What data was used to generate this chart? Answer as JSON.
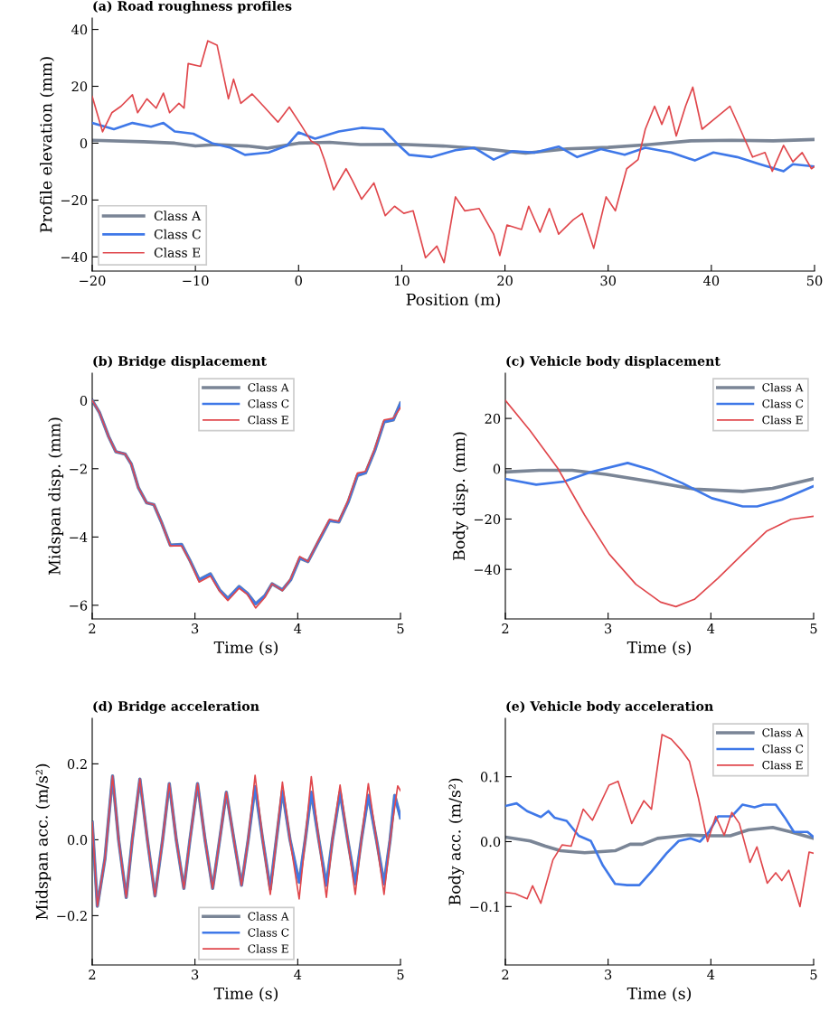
{
  "chart_data": [
    {
      "type": "line",
      "title": "(a) Road roughness profiles",
      "xlabel": "Position (m)",
      "ylabel": "Profile elevation (mm)",
      "xlim": [
        -20,
        50
      ],
      "ylim": [
        -45,
        44
      ],
      "xticks": [
        {
          "value": -20,
          "label": "−20"
        },
        {
          "value": -10,
          "label": "−10"
        },
        0,
        10,
        20,
        30,
        40,
        50
      ],
      "yticks": [
        {
          "value": -40,
          "label": "−40"
        },
        {
          "value": -20,
          "label": "−20"
        },
        0,
        20,
        40
      ],
      "legend": "bottom left",
      "series": [
        {
          "name": "Class A",
          "color": "#7a8596",
          "x": [
            -20,
            -15,
            -12,
            -10,
            -8,
            -5,
            -3,
            0,
            3,
            6,
            10,
            14,
            18,
            22,
            26,
            30,
            34,
            38,
            42,
            46,
            50
          ],
          "values": [
            1,
            0.5,
            0,
            -1,
            -0.5,
            -1,
            -1.8,
            0,
            0.3,
            -0.5,
            -0.4,
            -1,
            -2,
            -3.5,
            -2,
            -1.5,
            -0.5,
            0.8,
            1,
            0.8,
            1.3
          ]
        },
        {
          "name": "Class C",
          "color": "#3f78e8",
          "x": [
            -20,
            -17.9,
            -16.1,
            -14.3,
            -13.1,
            -12,
            -10.2,
            -8.4,
            -6.6,
            -5.2,
            -2.9,
            -1.1,
            0,
            1.6,
            3.9,
            6.1,
            8.2,
            9.5,
            10.7,
            12.9,
            15.2,
            17,
            18.9,
            20.7,
            22.9,
            25.2,
            27,
            29.3,
            31.6,
            33.6,
            36.1,
            38.4,
            40.2,
            42.5,
            44.7,
            47,
            47.9,
            50
          ],
          "values": [
            7.1,
            4.9,
            7.1,
            5.8,
            7.1,
            4.1,
            3.3,
            0,
            -1.6,
            -4.1,
            -3.3,
            -0.8,
            3.8,
            1.6,
            4.1,
            5.4,
            4.9,
            0,
            -4.1,
            -4.9,
            -2.5,
            -1.6,
            -5.8,
            -2.8,
            -3.3,
            -1.2,
            -4.9,
            -2.1,
            -4.1,
            -1.6,
            -3.3,
            -6.1,
            -3.3,
            -4.9,
            -7.4,
            -9.9,
            -7.4,
            -8.2
          ]
        },
        {
          "name": "Class E",
          "color": "#e0474c",
          "x": [
            -20,
            -19,
            -18.1,
            -17.2,
            -16.1,
            -15.6,
            -14.7,
            -13.8,
            -13.1,
            -12.5,
            -11.6,
            -11.1,
            -10.7,
            -9.5,
            -8.8,
            -7.9,
            -6.8,
            -6.3,
            -5.6,
            -4.5,
            -3.4,
            -2,
            -0.9,
            0.2,
            1.2,
            2,
            2.5,
            3.4,
            4.6,
            5.2,
            6.1,
            7.3,
            8.4,
            9.3,
            10.2,
            11.1,
            12.3,
            13.4,
            14.1,
            15.2,
            16.1,
            17.5,
            18.9,
            19.5,
            20.2,
            21.6,
            22.3,
            23.4,
            24.3,
            25.2,
            26.6,
            27.5,
            28.6,
            29.8,
            30.7,
            31.8,
            32.9,
            33.6,
            34.5,
            35.2,
            35.9,
            36.6,
            37.5,
            38.2,
            39.1,
            40.2,
            41.8,
            42.9,
            44,
            45.2,
            45.9,
            47,
            47.9,
            48.8,
            49.7,
            50
          ],
          "values": [
            16.4,
            4,
            10.7,
            13,
            17,
            10.7,
            15.6,
            12.3,
            17.6,
            10.7,
            14,
            12.3,
            28,
            27,
            36,
            34.5,
            15.6,
            22.5,
            14,
            17.3,
            13,
            7.4,
            12.7,
            6.6,
            0.8,
            -0.8,
            -5.8,
            -16.4,
            -9,
            -13,
            -19.7,
            -14,
            -25.5,
            -22.2,
            -24.7,
            -23.8,
            -40.3,
            -36.2,
            -42,
            -18.9,
            -23.8,
            -23,
            -32,
            -39.5,
            -28.8,
            -30.4,
            -22.2,
            -31.3,
            -23,
            -32,
            -27,
            -24.7,
            -37,
            -18.9,
            -23.8,
            -9,
            -5.8,
            4.9,
            13,
            6.6,
            13,
            2.5,
            13,
            19.7,
            4.9,
            8.2,
            13,
            4.1,
            -4.9,
            -3.3,
            -9.9,
            -0.8,
            -6.6,
            -3.3,
            -9,
            -8.2
          ]
        }
      ]
    },
    {
      "type": "line",
      "title": "(b) Bridge displacement",
      "xlabel": "Time (s)",
      "ylabel": "Midspan disp. (mm)",
      "xlim": [
        2,
        5
      ],
      "ylim": [
        -6.4,
        0.8
      ],
      "xticks": [
        2,
        3,
        4,
        5
      ],
      "yticks": [
        {
          "value": -6,
          "label": "−6"
        },
        {
          "value": -4,
          "label": "−4"
        },
        {
          "value": -2,
          "label": "−2"
        },
        0
      ],
      "legend": "top center",
      "series": [
        {
          "name": "Class A",
          "color": "#7a8596",
          "x": [
            2.0,
            2.07,
            2.16,
            2.23,
            2.32,
            2.38,
            2.45,
            2.53,
            2.6,
            2.67,
            2.76,
            2.87,
            2.95,
            3.04,
            3.15,
            3.24,
            3.32,
            3.43,
            3.51,
            3.59,
            3.68,
            3.75,
            3.85,
            3.93,
            4.02,
            4.1,
            4.19,
            4.31,
            4.4,
            4.49,
            4.58,
            4.66,
            4.75,
            4.84,
            4.93,
            5.0
          ],
          "values": [
            0,
            -0.35,
            -1.06,
            -1.5,
            -1.57,
            -1.86,
            -2.56,
            -3.0,
            -3.05,
            -3.54,
            -4.24,
            -4.22,
            -4.68,
            -5.25,
            -5.08,
            -5.55,
            -5.8,
            -5.45,
            -5.65,
            -5.96,
            -5.72,
            -5.37,
            -5.55,
            -5.26,
            -4.62,
            -4.72,
            -4.2,
            -3.52,
            -3.56,
            -2.98,
            -2.2,
            -2.12,
            -1.46,
            -0.63,
            -0.57,
            -0.08
          ]
        },
        {
          "name": "Class C",
          "color": "#3f78e8",
          "x": [
            2.0,
            2.07,
            2.16,
            2.23,
            2.32,
            2.38,
            2.45,
            2.53,
            2.6,
            2.67,
            2.76,
            2.87,
            2.95,
            3.04,
            3.15,
            3.24,
            3.32,
            3.43,
            3.51,
            3.59,
            3.68,
            3.75,
            3.85,
            3.93,
            4.02,
            4.1,
            4.19,
            4.31,
            4.4,
            4.49,
            4.58,
            4.66,
            4.75,
            4.84,
            4.93,
            5.0
          ],
          "values": [
            0,
            -0.35,
            -1.06,
            -1.5,
            -1.57,
            -1.86,
            -2.56,
            -3.0,
            -3.05,
            -3.54,
            -4.24,
            -4.22,
            -4.68,
            -5.25,
            -5.08,
            -5.55,
            -5.8,
            -5.45,
            -5.65,
            -5.96,
            -5.72,
            -5.37,
            -5.55,
            -5.26,
            -4.62,
            -4.72,
            -4.2,
            -3.52,
            -3.56,
            -2.98,
            -2.2,
            -2.12,
            -1.46,
            -0.63,
            -0.57,
            -0.08
          ]
        },
        {
          "name": "Class E",
          "color": "#e0474c",
          "x": [
            2.0,
            2.07,
            2.16,
            2.23,
            2.32,
            2.38,
            2.45,
            2.53,
            2.6,
            2.67,
            2.76,
            2.87,
            2.95,
            3.04,
            3.15,
            3.24,
            3.32,
            3.43,
            3.51,
            3.59,
            3.68,
            3.75,
            3.85,
            3.93,
            4.02,
            4.1,
            4.19,
            4.31,
            4.4,
            4.49,
            4.58,
            4.66,
            4.75,
            4.84,
            4.93,
            5.0
          ],
          "values": [
            0,
            -0.35,
            -1.06,
            -1.5,
            -1.57,
            -1.86,
            -2.56,
            -3.0,
            -3.05,
            -3.54,
            -4.26,
            -4.26,
            -4.7,
            -5.32,
            -5.14,
            -5.59,
            -5.86,
            -5.5,
            -5.68,
            -6.08,
            -5.77,
            -5.37,
            -5.57,
            -5.23,
            -4.57,
            -4.72,
            -4.17,
            -3.48,
            -3.54,
            -2.93,
            -2.13,
            -2.08,
            -1.41,
            -0.57,
            -0.52,
            -0.21
          ]
        }
      ]
    },
    {
      "type": "line",
      "title": "(c) Vehicle body displacement",
      "xlabel": "Time (s)",
      "ylabel": "Body disp. (mm)",
      "xlim": [
        2,
        5
      ],
      "ylim": [
        -59.7,
        38
      ],
      "xticks": [
        2,
        3,
        4,
        5
      ],
      "yticks": [
        {
          "value": -40,
          "label": "−40"
        },
        {
          "value": -20,
          "label": "−20"
        },
        0,
        20
      ],
      "legend": "top right",
      "series": [
        {
          "name": "Class A",
          "color": "#7a8596",
          "x": [
            2,
            2.33,
            2.65,
            2.98,
            3.42,
            3.84,
            4.31,
            4.6,
            5
          ],
          "values": [
            -1.3,
            -0.6,
            -0.6,
            -2.2,
            -5.1,
            -8.1,
            -9,
            -7.8,
            -4
          ]
        },
        {
          "name": "Class C",
          "color": "#3f78e8",
          "x": [
            2,
            2.3,
            2.57,
            2.83,
            3.19,
            3.42,
            3.72,
            4.01,
            4.31,
            4.45,
            4.69,
            5
          ],
          "values": [
            -4,
            -6.3,
            -5.1,
            -1.3,
            2.3,
            -0.4,
            -5.7,
            -11.7,
            -15,
            -15,
            -12.3,
            -6.9
          ]
        },
        {
          "name": "Class E",
          "color": "#e0474c",
          "x": [
            2,
            2.24,
            2.51,
            2.77,
            3.01,
            3.27,
            3.51,
            3.66,
            3.84,
            4.07,
            4.31,
            4.54,
            4.78,
            5
          ],
          "values": [
            27.2,
            15.2,
            0.2,
            -18.3,
            -33.9,
            -45.9,
            -53,
            -54.8,
            -51.9,
            -43.5,
            -33.9,
            -24.9,
            -20.1,
            -18.9
          ]
        }
      ]
    },
    {
      "type": "line",
      "title": "(d) Bridge acceleration",
      "xlabel": "Time (s)",
      "ylabel": "Midspan acc. (m/s²)",
      "xlim": [
        2,
        5
      ],
      "ylim": [
        -0.33,
        0.32
      ],
      "xticks": [
        2,
        3,
        4,
        5
      ],
      "yticks": [
        {
          "value": -0.2,
          "label": "−0.2"
        },
        {
          "value": 0,
          "label": "0.0"
        },
        0.2
      ],
      "legend": "bottom center",
      "series": [
        {
          "name": "Class A",
          "color": "#7a8596",
          "x": [
            2.0,
            2.05,
            2.124,
            2.198,
            2.257,
            2.331,
            2.39,
            2.464,
            2.537,
            2.611,
            2.685,
            2.75,
            2.818,
            2.892,
            2.951,
            3.025,
            3.098,
            3.172,
            3.24,
            3.305,
            3.379,
            3.453,
            3.518,
            3.585,
            3.659,
            3.733,
            3.792,
            3.851,
            3.925,
            4.014,
            4.073,
            4.132,
            4.205,
            4.279,
            4.338,
            4.412,
            4.486,
            4.56,
            4.619,
            4.687,
            4.766,
            4.84,
            4.899,
            4.944,
            5.0
          ],
          "values": [
            0.046,
            -0.175,
            -0.05,
            0.168,
            0.0,
            -0.152,
            0.0,
            0.16,
            0.0,
            -0.148,
            0.0,
            0.148,
            0.0,
            -0.128,
            0.0,
            0.148,
            0.0,
            -0.128,
            0.0,
            0.125,
            0.0,
            -0.12,
            0.0,
            0.14,
            0.0,
            -0.13,
            0.0,
            0.129,
            0.0,
            -0.112,
            0.0,
            0.125,
            0.0,
            -0.12,
            0.0,
            0.125,
            0.0,
            -0.116,
            0.0,
            0.117,
            0.0,
            -0.116,
            0.0,
            0.117,
            0.058
          ]
        },
        {
          "name": "Class C",
          "color": "#3f78e8",
          "x": [
            2.0,
            2.05,
            2.124,
            2.198,
            2.257,
            2.331,
            2.39,
            2.464,
            2.537,
            2.611,
            2.685,
            2.75,
            2.818,
            2.892,
            2.951,
            3.025,
            3.098,
            3.172,
            3.24,
            3.305,
            3.379,
            3.453,
            3.518,
            3.585,
            3.659,
            3.733,
            3.792,
            3.851,
            3.925,
            4.014,
            4.073,
            4.132,
            4.205,
            4.279,
            4.338,
            4.412,
            4.486,
            4.56,
            4.619,
            4.687,
            4.766,
            4.84,
            4.899,
            4.944,
            5.0
          ],
          "values": [
            0.046,
            -0.175,
            -0.05,
            0.168,
            0.0,
            -0.152,
            0.0,
            0.16,
            0.0,
            -0.148,
            0.0,
            0.148,
            0.0,
            -0.128,
            0.0,
            0.148,
            0.0,
            -0.128,
            0.0,
            0.125,
            0.0,
            -0.12,
            0.0,
            0.14,
            0.0,
            -0.13,
            0.0,
            0.129,
            0.0,
            -0.112,
            0.0,
            0.125,
            0.0,
            -0.12,
            0.0,
            0.125,
            0.0,
            -0.116,
            0.0,
            0.117,
            0.0,
            -0.116,
            0.0,
            0.117,
            0.058
          ]
        },
        {
          "name": "Class E",
          "color": "#e0474c",
          "x": [
            2.0,
            2.05,
            2.124,
            2.198,
            2.257,
            2.331,
            2.39,
            2.464,
            2.537,
            2.611,
            2.685,
            2.75,
            2.818,
            2.892,
            2.951,
            3.025,
            3.098,
            3.172,
            3.24,
            3.305,
            3.379,
            3.453,
            3.518,
            3.585,
            3.659,
            3.733,
            3.792,
            3.851,
            3.925,
            4.014,
            4.073,
            4.132,
            4.205,
            4.279,
            4.338,
            4.412,
            4.486,
            4.56,
            4.619,
            4.687,
            4.766,
            4.84,
            4.899,
            4.973,
            5.0
          ],
          "values": [
            0.046,
            -0.175,
            -0.05,
            0.168,
            0.0,
            -0.152,
            0.0,
            0.16,
            0.0,
            -0.148,
            0.0,
            0.148,
            0.0,
            -0.128,
            0.0,
            0.148,
            0.0,
            -0.128,
            0.0,
            0.125,
            0.0,
            -0.12,
            0.0,
            0.17,
            0.0,
            -0.144,
            0.0,
            0.152,
            0.0,
            -0.156,
            0.0,
            0.166,
            0.0,
            -0.152,
            0.0,
            0.144,
            0.0,
            -0.144,
            0.0,
            0.148,
            0.0,
            -0.144,
            0.0,
            0.142,
            0.129
          ]
        }
      ]
    },
    {
      "type": "line",
      "title": "(e) Vehicle body acceleration",
      "xlabel": "Time (s)",
      "ylabel": "Body acc. (m/s²)",
      "xlim": [
        2,
        5
      ],
      "ylim": [
        -0.19,
        0.19
      ],
      "xticks": [
        2,
        3,
        4,
        5
      ],
      "yticks": [
        {
          "value": -0.1,
          "label": "−0.1"
        },
        {
          "value": 0,
          "label": "0.0"
        },
        0.1
      ],
      "legend": "top right",
      "series": [
        {
          "name": "Class A",
          "color": "#7a8596",
          "x": [
            2,
            2.242,
            2.389,
            2.537,
            2.773,
            3.068,
            3.215,
            3.333,
            3.481,
            3.776,
            4.012,
            4.189,
            4.366,
            4.602,
            4.779,
            5
          ],
          "values": [
            0.007,
            0.001,
            -0.007,
            -0.014,
            -0.017,
            -0.014,
            -0.004,
            -0.004,
            0.005,
            0.01,
            0.009,
            0.009,
            0.018,
            0.022,
            0.015,
            0.005
          ]
        },
        {
          "name": "Class C",
          "color": "#3f78e8",
          "x": [
            2,
            2.109,
            2.212,
            2.345,
            2.419,
            2.478,
            2.596,
            2.714,
            2.832,
            2.95,
            3.068,
            3.186,
            3.304,
            3.422,
            3.569,
            3.687,
            3.805,
            3.894,
            3.982,
            4.071,
            4.204,
            4.307,
            4.425,
            4.513,
            4.631,
            4.72,
            4.808,
            4.941,
            5
          ],
          "values": [
            0.055,
            0.059,
            0.047,
            0.038,
            0.047,
            0.037,
            0.032,
            0.009,
            0.001,
            -0.037,
            -0.065,
            -0.067,
            -0.067,
            -0.046,
            -0.018,
            0.001,
            0.005,
            0.0,
            0.015,
            0.039,
            0.039,
            0.057,
            0.053,
            0.057,
            0.057,
            0.037,
            0.015,
            0.015,
            0.007
          ]
        },
        {
          "name": "Class E",
          "color": "#e0474c",
          "x": [
            2,
            2.094,
            2.212,
            2.265,
            2.345,
            2.463,
            2.552,
            2.64,
            2.758,
            2.847,
            3.009,
            3.097,
            3.23,
            3.348,
            3.422,
            3.525,
            3.614,
            3.717,
            3.791,
            3.879,
            3.968,
            4.047,
            4.13,
            4.204,
            4.277,
            4.381,
            4.448,
            4.549,
            4.631,
            4.69,
            4.758,
            4.867,
            4.956,
            5
          ],
          "values": [
            -0.078,
            -0.08,
            -0.088,
            -0.068,
            -0.095,
            -0.028,
            -0.005,
            -0.007,
            0.05,
            0.033,
            0.087,
            0.093,
            0.028,
            0.063,
            0.05,
            0.165,
            0.158,
            0.14,
            0.124,
            0.067,
            0.0,
            0.039,
            0.01,
            0.045,
            0.028,
            -0.032,
            -0.008,
            -0.064,
            -0.048,
            -0.06,
            -0.044,
            -0.1,
            -0.016,
            -0.018
          ]
        }
      ]
    }
  ]
}
